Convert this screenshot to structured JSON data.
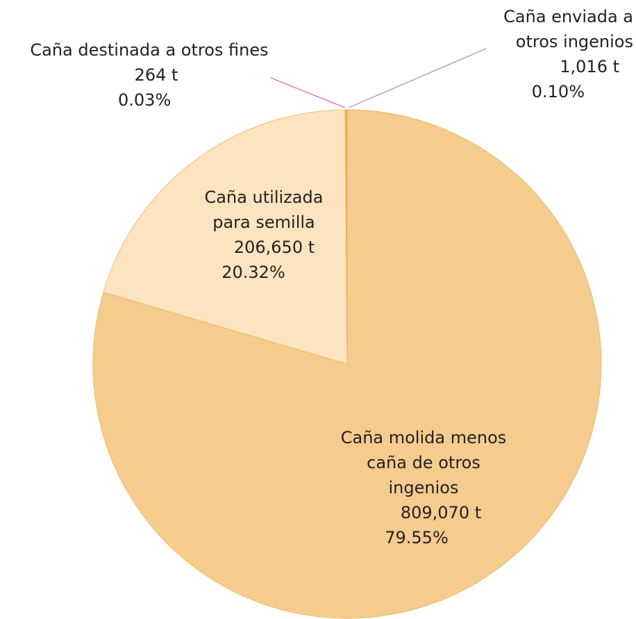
{
  "chart_data": {
    "type": "pie",
    "categories": [
      "Caña molida menos caña de otros ingenios",
      "Caña utilizada para semilla",
      "Caña destinada a otros fines",
      "Caña enviada a otros ingenios"
    ],
    "values": [
      809070,
      206650,
      264,
      1016
    ],
    "value_labels": [
      "809,070 t",
      "206,650 t",
      "264 t",
      "1,016 t"
    ],
    "percentages": [
      79.55,
      20.32,
      0.03,
      0.1
    ],
    "percentage_labels": [
      "79.55%",
      "20.32%",
      "0.03%",
      "0.10%"
    ],
    "colors": [
      "#f6cb8e",
      "#fde4c0",
      "#f3b978",
      "#e9a95c"
    ]
  }
}
